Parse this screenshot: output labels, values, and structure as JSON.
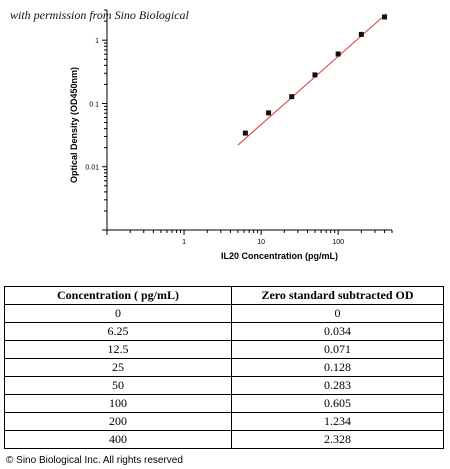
{
  "watermark": "with permission from Sino Biological",
  "copyright": "© Sino Biological Inc. All rights reserved",
  "colors": {
    "fit_line": "#e03030",
    "points": "#111111",
    "axis": "#000000"
  },
  "chart_data": {
    "type": "scatter",
    "xscale": "log",
    "yscale": "log",
    "xlabel": "IL20 Concentration (pg/mL)",
    "ylabel": "Optical Density (OD450nm)",
    "xlim": [
      0.1,
      500
    ],
    "ylim": [
      0.001,
      3
    ],
    "xticks": [
      {
        "value": 1,
        "label": "1"
      },
      {
        "value": 10,
        "label": "10"
      },
      {
        "value": 100,
        "label": "100"
      }
    ],
    "yticks": [
      {
        "value": 0.01,
        "label": "0.01"
      },
      {
        "value": 0.1,
        "label": "0.1"
      },
      {
        "value": 1,
        "label": "1"
      }
    ],
    "points": [
      {
        "x": 6.25,
        "y": 0.034
      },
      {
        "x": 12.5,
        "y": 0.071
      },
      {
        "x": 25,
        "y": 0.128
      },
      {
        "x": 50,
        "y": 0.283
      },
      {
        "x": 100,
        "y": 0.605
      },
      {
        "x": 200,
        "y": 1.234
      },
      {
        "x": 400,
        "y": 2.328
      }
    ],
    "fit_line": {
      "x1": 5,
      "y1": 0.022,
      "x2": 420,
      "y2": 2.6
    },
    "grid": false
  },
  "table": {
    "headers": [
      "Concentration ( pg/mL)",
      "Zero standard subtracted OD"
    ],
    "rows": [
      [
        "0",
        "0"
      ],
      [
        "6.25",
        "0.034"
      ],
      [
        "12.5",
        "0.071"
      ],
      [
        "25",
        "0.128"
      ],
      [
        "50",
        "0.283"
      ],
      [
        "100",
        "0.605"
      ],
      [
        "200",
        "1.234"
      ],
      [
        "400",
        "2.328"
      ]
    ]
  }
}
